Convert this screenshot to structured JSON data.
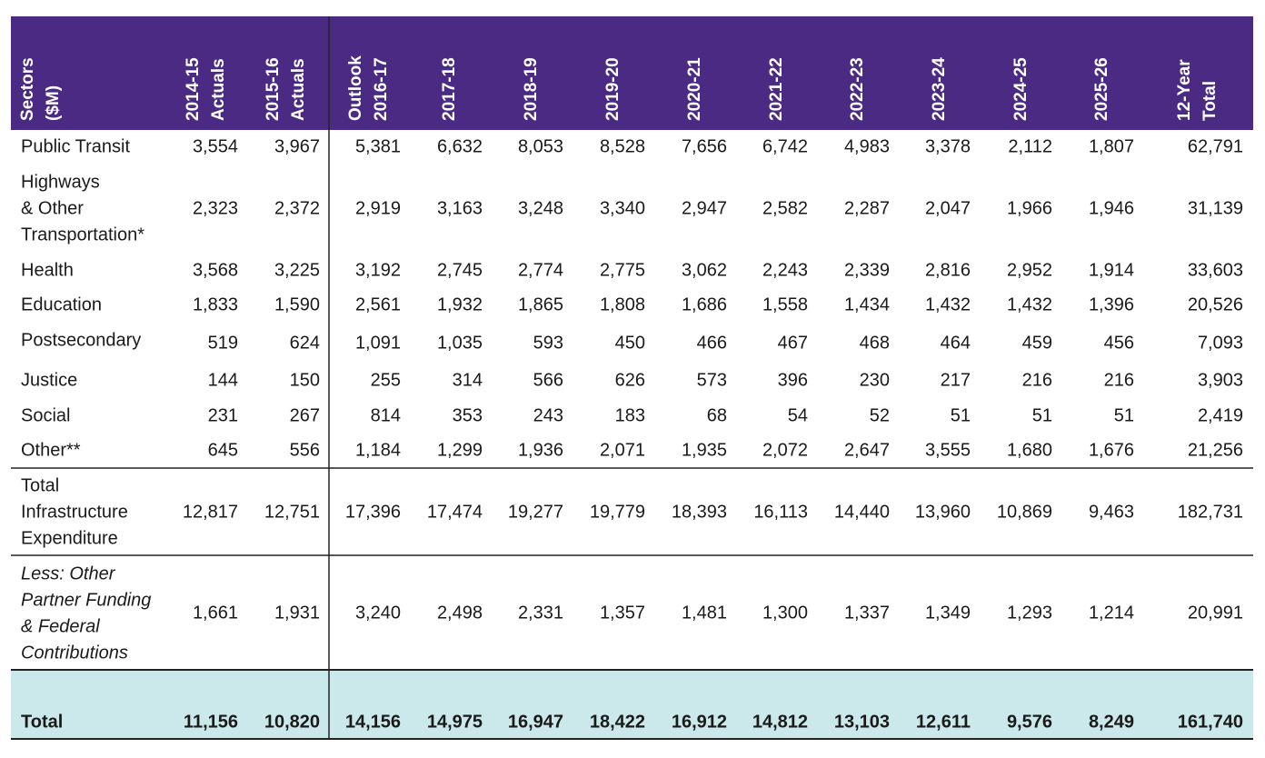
{
  "table": {
    "header": [
      [
        "Sectors",
        "($M)"
      ],
      [
        "2014-15",
        "Actuals"
      ],
      [
        "2015-16",
        "Actuals"
      ],
      [
        "Outlook",
        "2016-17"
      ],
      [
        "2017-18"
      ],
      [
        "2018-19"
      ],
      [
        "2019-20"
      ],
      [
        "2020-21"
      ],
      [
        "2021-22"
      ],
      [
        "2022-23"
      ],
      [
        "2023-24"
      ],
      [
        "2024-25"
      ],
      [
        "2025-26"
      ],
      [
        "12-Year",
        "Total"
      ]
    ],
    "rows": [
      {
        "label": [
          "Public Transit"
        ],
        "values": [
          "3,554",
          "3,967",
          "5,381",
          "6,632",
          "8,053",
          "8,528",
          "7,656",
          "6,742",
          "4,983",
          "3,378",
          "2,112",
          "1,807",
          "62,791"
        ]
      },
      {
        "label": [
          "Highways",
          "& Other",
          "Transportation*"
        ],
        "values": [
          "2,323",
          "2,372",
          "2,919",
          "3,163",
          "3,248",
          "3,340",
          "2,947",
          "2,582",
          "2,287",
          "2,047",
          "1,966",
          "1,946",
          "31,139"
        ]
      },
      {
        "label": [
          "Health"
        ],
        "values": [
          "3,568",
          "3,225",
          "3,192",
          "2,745",
          "2,774",
          "2,775",
          "3,062",
          "2,243",
          "2,339",
          "2,816",
          "2,952",
          "1,914",
          "33,603"
        ]
      },
      {
        "label": [
          "Education"
        ],
        "values": [
          "1,833",
          "1,590",
          "2,561",
          "1,932",
          "1,865",
          "1,808",
          "1,686",
          "1,558",
          "1,434",
          "1,432",
          "1,432",
          "1,396",
          "20,526"
        ]
      },
      {
        "label": [
          "Postsecondary"
        ],
        "values": [
          "519",
          "624",
          "1,091",
          "1,035",
          "593",
          "450",
          "466",
          "467",
          "468",
          "464",
          "459",
          "456",
          "7,093"
        ]
      },
      {
        "label": [
          "Justice"
        ],
        "values": [
          "144",
          "150",
          "255",
          "314",
          "566",
          "626",
          "573",
          "396",
          "230",
          "217",
          "216",
          "216",
          "3,903"
        ]
      },
      {
        "label": [
          "Social"
        ],
        "values": [
          "231",
          "267",
          "814",
          "353",
          "243",
          "183",
          "68",
          "54",
          "52",
          "51",
          "51",
          "51",
          "2,419"
        ]
      },
      {
        "label": [
          "Other**"
        ],
        "values": [
          "645",
          "556",
          "1,184",
          "1,299",
          "1,936",
          "2,071",
          "1,935",
          "2,072",
          "2,647",
          "3,555",
          "1,680",
          "1,676",
          "21,256"
        ]
      },
      {
        "label": [
          "Total",
          "Infrastructure",
          "Expenditure"
        ],
        "values": [
          "12,817",
          "12,751",
          "17,396",
          "17,474",
          "19,277",
          "19,779",
          "18,393",
          "16,113",
          "14,440",
          "13,960",
          "10,869",
          "9,463",
          "182,731"
        ]
      },
      {
        "label": [
          "Less: Other",
          "Partner Funding",
          "& Federal",
          "Contributions"
        ],
        "values": [
          "1,661",
          "1,931",
          "3,240",
          "2,498",
          "2,331",
          "1,357",
          "1,481",
          "1,300",
          "1,337",
          "1,349",
          "1,293",
          "1,214",
          "20,991"
        ]
      },
      {
        "label": [
          "Total"
        ],
        "values": [
          "11,156",
          "10,820",
          "14,156",
          "14,975",
          "16,947",
          "18,422",
          "16,912",
          "14,812",
          "13,103",
          "12,611",
          "9,576",
          "8,249",
          "161,740"
        ]
      }
    ]
  }
}
